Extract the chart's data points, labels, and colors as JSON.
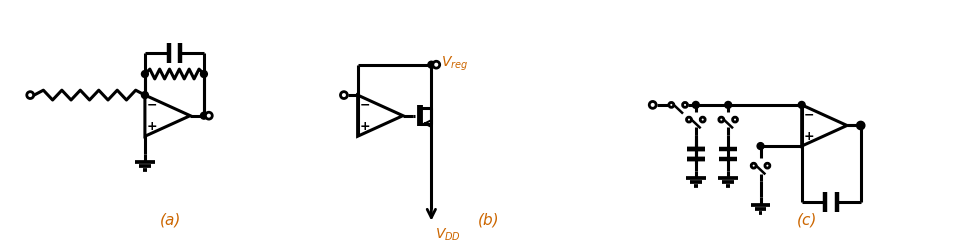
{
  "fig_width": 9.77,
  "fig_height": 2.46,
  "dpi": 100,
  "bg_color": "#ffffff",
  "line_color": "#000000",
  "label_color": "#cc6600",
  "lw": 2.2,
  "labels": [
    "(a)",
    "(b)",
    "(c)"
  ],
  "vdd_color": "#cc6600",
  "vreg_color": "#cc6600"
}
